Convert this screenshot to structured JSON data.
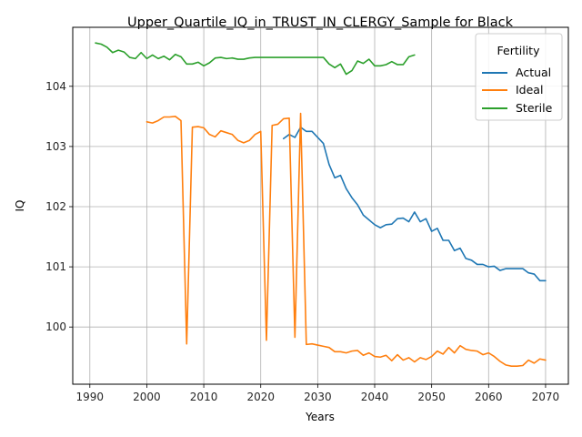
{
  "chart_data": {
    "type": "line",
    "title": "Upper_Quartile_IQ_in_TRUST_IN_CLERGY_Sample for Black",
    "xlabel": "Years",
    "ylabel": "IQ",
    "xlim": [
      1987,
      2074
    ],
    "ylim": [
      99.05,
      104.98
    ],
    "xticks": [
      1990,
      2000,
      2010,
      2020,
      2030,
      2040,
      2050,
      2060,
      2070
    ],
    "yticks": [
      100,
      101,
      102,
      103,
      104
    ],
    "grid": true,
    "legend": {
      "title": "Fertility",
      "placement": "top-right"
    },
    "series": [
      {
        "name": "Actual",
        "color": "#1f77b4",
        "x": [
          2024,
          2025,
          2026,
          2027,
          2028,
          2029,
          2030,
          2031,
          2032,
          2033,
          2034,
          2035,
          2036,
          2037,
          2038,
          2039,
          2040,
          2041,
          2042,
          2043,
          2044,
          2045,
          2046,
          2047,
          2048,
          2049,
          2050,
          2051,
          2052,
          2053,
          2054,
          2055,
          2056,
          2057,
          2058,
          2059,
          2060,
          2061,
          2062,
          2063,
          2064,
          2065,
          2066,
          2067,
          2068,
          2069,
          2070
        ],
        "y": [
          103.13,
          103.2,
          103.15,
          103.32,
          103.25,
          103.25,
          103.15,
          103.05,
          102.7,
          102.48,
          102.52,
          102.3,
          102.15,
          102.03,
          101.86,
          101.78,
          101.7,
          101.65,
          101.7,
          101.71,
          101.8,
          101.81,
          101.75,
          101.91,
          101.75,
          101.8,
          101.59,
          101.64,
          101.44,
          101.44,
          101.27,
          101.31,
          101.14,
          101.11,
          101.04,
          101.04,
          101.0,
          101.01,
          100.94,
          100.97,
          100.97,
          100.97,
          100.97,
          100.9,
          100.88,
          100.77,
          100.77
        ]
      },
      {
        "name": "Ideal",
        "color": "#ff7f0e",
        "x": [
          2000,
          2001,
          2002,
          2003,
          2004,
          2005,
          2006,
          2007,
          2008,
          2009,
          2010,
          2011,
          2012,
          2013,
          2014,
          2015,
          2016,
          2017,
          2018,
          2019,
          2020,
          2021,
          2022,
          2023,
          2024,
          2025,
          2026,
          2027,
          2028,
          2029,
          2030,
          2031,
          2032,
          2033,
          2034,
          2035,
          2036,
          2037,
          2038,
          2039,
          2040,
          2041,
          2042,
          2043,
          2044,
          2045,
          2046,
          2047,
          2048,
          2049,
          2050,
          2051,
          2052,
          2053,
          2054,
          2055,
          2056,
          2057,
          2058,
          2059,
          2060,
          2061,
          2062,
          2063,
          2064,
          2065,
          2066,
          2067,
          2068,
          2069,
          2070
        ],
        "y": [
          103.41,
          103.39,
          103.43,
          103.49,
          103.49,
          103.5,
          103.43,
          99.72,
          103.32,
          103.33,
          103.31,
          103.2,
          103.16,
          103.26,
          103.23,
          103.2,
          103.1,
          103.06,
          103.1,
          103.2,
          103.25,
          99.78,
          103.35,
          103.37,
          103.46,
          103.47,
          99.83,
          103.55,
          99.71,
          99.72,
          99.7,
          99.68,
          99.66,
          99.59,
          99.59,
          99.57,
          99.6,
          99.61,
          99.53,
          99.57,
          99.51,
          99.5,
          99.53,
          99.44,
          99.54,
          99.45,
          99.49,
          99.42,
          99.49,
          99.46,
          99.51,
          99.6,
          99.55,
          99.66,
          99.57,
          99.69,
          99.63,
          99.61,
          99.6,
          99.54,
          99.57,
          99.51,
          99.43,
          99.37,
          99.35,
          99.35,
          99.36,
          99.45,
          99.4,
          99.47,
          99.45
        ]
      },
      {
        "name": "Sterile",
        "color": "#2ca02c",
        "x": [
          1991,
          1992,
          1993,
          1994,
          1995,
          1996,
          1997,
          1998,
          1999,
          2000,
          2001,
          2002,
          2003,
          2004,
          2005,
          2006,
          2007,
          2008,
          2009,
          2010,
          2011,
          2012,
          2013,
          2014,
          2015,
          2016,
          2017,
          2018,
          2019,
          2020,
          2021,
          2022,
          2023,
          2024,
          2025,
          2026,
          2027,
          2028,
          2029,
          2030,
          2031,
          2032,
          2033,
          2034,
          2035,
          2036,
          2037,
          2038,
          2039,
          2040,
          2041,
          2042,
          2043,
          2044,
          2045,
          2046,
          2047
        ],
        "y": [
          104.72,
          104.7,
          104.65,
          104.56,
          104.6,
          104.57,
          104.48,
          104.46,
          104.56,
          104.46,
          104.52,
          104.46,
          104.5,
          104.44,
          104.53,
          104.49,
          104.37,
          104.37,
          104.4,
          104.34,
          104.39,
          104.47,
          104.48,
          104.46,
          104.47,
          104.45,
          104.45,
          104.47,
          104.48,
          104.48,
          104.48,
          104.48,
          104.48,
          104.48,
          104.48,
          104.48,
          104.48,
          104.48,
          104.48,
          104.48,
          104.48,
          104.37,
          104.31,
          104.37,
          104.2,
          104.26,
          104.42,
          104.38,
          104.45,
          104.34,
          104.34,
          104.36,
          104.41,
          104.36,
          104.36,
          104.49,
          104.52
        ]
      }
    ]
  }
}
